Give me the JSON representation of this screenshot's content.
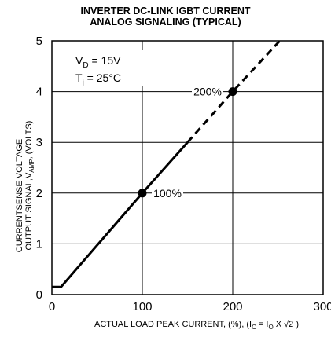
{
  "title": {
    "line1": "INVERTER DC-LINK IGBT CURRENT",
    "line2": "ANALOG SIGNALING (TYPICAL)"
  },
  "axes": {
    "ylabel_line1": "CURRENTSENSE VOLTAGE",
    "ylabel_line2": "OUTPUT SIGNAL,V",
    "ylabel_line2_sub": "AMP",
    "ylabel_line2_tail": ", (VOLTS)",
    "xlabel_main": "ACTUAL LOAD PEAK CURRENT, (%), (I",
    "xlabel_sub_c": "C",
    "xlabel_eq": " = I",
    "xlabel_sub_o": "O",
    "xlabel_tail": " X √2 )"
  },
  "conditions": {
    "vd_main": "V",
    "vd_sub": "D",
    "vd_value": " = 15V",
    "tj_main": "T",
    "tj_sub": "j",
    "tj_value": " = 25°C"
  },
  "chart_data": {
    "type": "line",
    "xlim": [
      0,
      300
    ],
    "ylim": [
      0,
      5
    ],
    "x_ticks": [
      0,
      100,
      200,
      300
    ],
    "y_ticks": [
      0,
      1,
      2,
      3,
      4,
      5
    ],
    "grid": true,
    "series": [
      {
        "style": "solid",
        "x": [
          0,
          10,
          100,
          150
        ],
        "y": [
          0.15,
          0.15,
          2.0,
          3.0
        ]
      },
      {
        "style": "dashed",
        "x": [
          150,
          200,
          252
        ],
        "y": [
          3.0,
          4.0,
          5.0
        ]
      }
    ],
    "annotations": [
      {
        "x": 100,
        "y": 2,
        "label": "100%"
      },
      {
        "x": 200,
        "y": 4,
        "label": "200%"
      }
    ]
  }
}
